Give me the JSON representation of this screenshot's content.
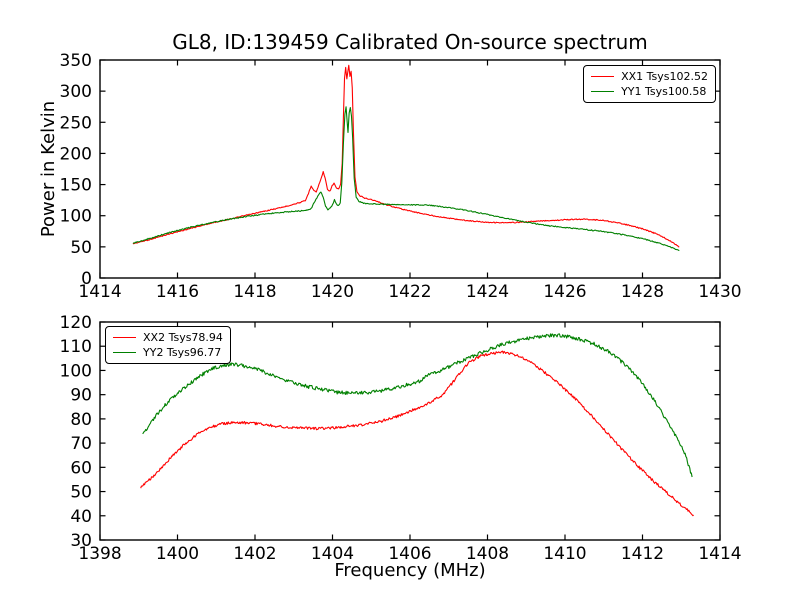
{
  "title": "GL8, ID:139459 Calibrated On-source spectrum",
  "colors": {
    "xx_line": "#ff0000",
    "yy_line": "#008000",
    "axes": "#000000",
    "background": "#ffffff"
  },
  "chart_data": [
    {
      "type": "line",
      "title": "",
      "xlabel": "",
      "ylabel": "Power in Kelvin",
      "xlim": [
        1414,
        1430
      ],
      "ylim": [
        0,
        350
      ],
      "xticks": [
        1414,
        1416,
        1418,
        1420,
        1422,
        1424,
        1426,
        1428,
        1430
      ],
      "yticks": [
        0,
        50,
        100,
        150,
        200,
        250,
        300,
        350
      ],
      "grid": false,
      "legend_position": "upper-right",
      "series": [
        {
          "name": "XX1 Tsys102.52",
          "color": "#ff0000",
          "noise": 0.8,
          "points": [
            [
              1414.85,
              55
            ],
            [
              1415.3,
              62
            ],
            [
              1415.8,
              71
            ],
            [
              1416.3,
              79
            ],
            [
              1416.8,
              87
            ],
            [
              1417.3,
              94
            ],
            [
              1417.8,
              101
            ],
            [
              1418.3,
              108
            ],
            [
              1418.8,
              115
            ],
            [
              1419.2,
              122
            ],
            [
              1419.3,
              124
            ],
            [
              1419.38,
              136
            ],
            [
              1419.45,
              148
            ],
            [
              1419.52,
              141
            ],
            [
              1419.58,
              138
            ],
            [
              1419.65,
              150
            ],
            [
              1419.72,
              162
            ],
            [
              1419.76,
              171
            ],
            [
              1419.81,
              160
            ],
            [
              1419.87,
              143
            ],
            [
              1419.93,
              139
            ],
            [
              1419.99,
              148
            ],
            [
              1420.04,
              152
            ],
            [
              1420.1,
              144
            ],
            [
              1420.16,
              143
            ],
            [
              1420.21,
              150
            ],
            [
              1420.25,
              185
            ],
            [
              1420.28,
              255
            ],
            [
              1420.31,
              320
            ],
            [
              1420.34,
              338
            ],
            [
              1420.37,
              320
            ],
            [
              1420.4,
              333
            ],
            [
              1420.42,
              341
            ],
            [
              1420.45,
              324
            ],
            [
              1420.48,
              332
            ],
            [
              1420.51,
              305
            ],
            [
              1420.54,
              235
            ],
            [
              1420.58,
              162
            ],
            [
              1420.63,
              138
            ],
            [
              1420.7,
              132
            ],
            [
              1420.85,
              128
            ],
            [
              1421,
              126
            ],
            [
              1421.5,
              115.5
            ],
            [
              1422,
              107.5
            ],
            [
              1422.5,
              101
            ],
            [
              1423,
              96
            ],
            [
              1423.5,
              92
            ],
            [
              1424,
              89.5
            ],
            [
              1424.5,
              88.5
            ],
            [
              1425,
              90
            ],
            [
              1425.5,
              92
            ],
            [
              1426,
              93.5
            ],
            [
              1426.5,
              94.5
            ],
            [
              1427,
              92.5
            ],
            [
              1427.5,
              87
            ],
            [
              1428,
              79
            ],
            [
              1428.4,
              70
            ],
            [
              1428.7,
              60
            ],
            [
              1428.95,
              50
            ]
          ]
        },
        {
          "name": "YY1 Tsys100.58",
          "color": "#008000",
          "noise": 0.8,
          "points": [
            [
              1414.85,
              56
            ],
            [
              1415.3,
              64
            ],
            [
              1415.8,
              73
            ],
            [
              1416.3,
              81
            ],
            [
              1416.8,
              88
            ],
            [
              1417.3,
              94
            ],
            [
              1417.8,
              99
            ],
            [
              1418.3,
              103
            ],
            [
              1418.8,
              106
            ],
            [
              1419.2,
              108
            ],
            [
              1419.4,
              109.5
            ],
            [
              1419.47,
              114
            ],
            [
              1419.55,
              124
            ],
            [
              1419.62,
              131
            ],
            [
              1419.7,
              138
            ],
            [
              1419.76,
              130
            ],
            [
              1419.82,
              115
            ],
            [
              1419.88,
              110
            ],
            [
              1419.94,
              112
            ],
            [
              1420.0,
              117
            ],
            [
              1420.05,
              126
            ],
            [
              1420.1,
              119
            ],
            [
              1420.15,
              116
            ],
            [
              1420.2,
              121
            ],
            [
              1420.24,
              152
            ],
            [
              1420.28,
              215
            ],
            [
              1420.32,
              262
            ],
            [
              1420.35,
              275
            ],
            [
              1420.38,
              250
            ],
            [
              1420.4,
              233
            ],
            [
              1420.43,
              265
            ],
            [
              1420.46,
              273
            ],
            [
              1420.49,
              260
            ],
            [
              1420.52,
              225
            ],
            [
              1420.56,
              160
            ],
            [
              1420.61,
              130
            ],
            [
              1420.68,
              123
            ],
            [
              1420.8,
              120
            ],
            [
              1421,
              119
            ],
            [
              1421.5,
              118
            ],
            [
              1422,
              117.5
            ],
            [
              1422.5,
              117
            ],
            [
              1423,
              113
            ],
            [
              1423.5,
              108
            ],
            [
              1424,
              102
            ],
            [
              1424.5,
              95.5
            ],
            [
              1425,
              89.5
            ],
            [
              1425.5,
              84.5
            ],
            [
              1426,
              81
            ],
            [
              1426.5,
              78
            ],
            [
              1427,
              74.5
            ],
            [
              1427.5,
              69.5
            ],
            [
              1428,
              63
            ],
            [
              1428.4,
              56.5
            ],
            [
              1428.7,
              50
            ],
            [
              1428.95,
              44
            ]
          ]
        }
      ]
    },
    {
      "type": "line",
      "title": "",
      "xlabel": "Frequency (MHz)",
      "ylabel": "",
      "xlim": [
        1398,
        1414
      ],
      "ylim": [
        30,
        120
      ],
      "xticks": [
        1398,
        1400,
        1402,
        1404,
        1406,
        1408,
        1410,
        1412,
        1414
      ],
      "yticks": [
        30,
        40,
        50,
        60,
        70,
        80,
        90,
        100,
        110,
        120
      ],
      "grid": false,
      "legend_position": "upper-left",
      "series": [
        {
          "name": "XX2 Tsys78.94",
          "color": "#ff0000",
          "noise": 0.55,
          "points": [
            [
              1399.05,
              51.5
            ],
            [
              1399.35,
              56
            ],
            [
              1399.65,
              61
            ],
            [
              1399.95,
              66
            ],
            [
              1400.25,
              70.5
            ],
            [
              1400.55,
              74
            ],
            [
              1400.85,
              76.5
            ],
            [
              1401.15,
              78
            ],
            [
              1401.45,
              78.6
            ],
            [
              1401.75,
              78.4
            ],
            [
              1402.05,
              78
            ],
            [
              1402.45,
              77.2
            ],
            [
              1402.85,
              76.6
            ],
            [
              1403.25,
              76.2
            ],
            [
              1403.65,
              76
            ],
            [
              1404.05,
              76.3
            ],
            [
              1404.45,
              77
            ],
            [
              1404.85,
              77.8
            ],
            [
              1405.25,
              79
            ],
            [
              1405.65,
              81
            ],
            [
              1406.05,
              83.5
            ],
            [
              1406.45,
              86.3
            ],
            [
              1406.85,
              90
            ],
            [
              1407.2,
              97
            ],
            [
              1407.5,
              103
            ],
            [
              1407.8,
              105.8
            ],
            [
              1408.1,
              107.2
            ],
            [
              1408.45,
              107.5
            ],
            [
              1408.75,
              106.3
            ],
            [
              1409.05,
              104
            ],
            [
              1409.45,
              99.5
            ],
            [
              1409.85,
              94.5
            ],
            [
              1410.25,
              88.5
            ],
            [
              1410.65,
              81.8
            ],
            [
              1411.05,
              74.8
            ],
            [
              1411.45,
              67.8
            ],
            [
              1411.85,
              61
            ],
            [
              1412.25,
              54.8
            ],
            [
              1412.65,
              49.2
            ],
            [
              1413.05,
              43.8
            ],
            [
              1413.32,
              40.3
            ]
          ]
        },
        {
          "name": "YY2 Tsys96.77",
          "color": "#008000",
          "noise": 0.75,
          "points": [
            [
              1399.1,
              73.5
            ],
            [
              1399.4,
              80.5
            ],
            [
              1399.7,
              86
            ],
            [
              1400.0,
              90.5
            ],
            [
              1400.3,
              94.5
            ],
            [
              1400.6,
              98
            ],
            [
              1400.9,
              100.8
            ],
            [
              1401.2,
              102.3
            ],
            [
              1401.5,
              102.5
            ],
            [
              1401.8,
              101.6
            ],
            [
              1402.1,
              100.2
            ],
            [
              1402.5,
              97.8
            ],
            [
              1402.9,
              95.5
            ],
            [
              1403.3,
              93.6
            ],
            [
              1403.7,
              92.2
            ],
            [
              1404.1,
              91
            ],
            [
              1404.5,
              90.5
            ],
            [
              1404.9,
              90.8
            ],
            [
              1405.3,
              91.7
            ],
            [
              1405.7,
              93.1
            ],
            [
              1406.1,
              94.9
            ],
            [
              1406.28,
              95.8
            ],
            [
              1406.38,
              97.6
            ],
            [
              1406.75,
              99.6
            ],
            [
              1407.15,
              102.6
            ],
            [
              1407.45,
              104.8
            ],
            [
              1407.95,
              108.1
            ],
            [
              1408.35,
              110.5
            ],
            [
              1408.75,
              112.3
            ],
            [
              1409.15,
              113.6
            ],
            [
              1409.5,
              114.4
            ],
            [
              1409.9,
              114.3
            ],
            [
              1410.35,
              113.1
            ],
            [
              1410.75,
              111
            ],
            [
              1411.15,
              107.5
            ],
            [
              1411.55,
              102.5
            ],
            [
              1411.95,
              95.5
            ],
            [
              1412.35,
              86.5
            ],
            [
              1412.75,
              76
            ],
            [
              1413.1,
              65.5
            ],
            [
              1413.28,
              56
            ]
          ]
        }
      ]
    }
  ]
}
